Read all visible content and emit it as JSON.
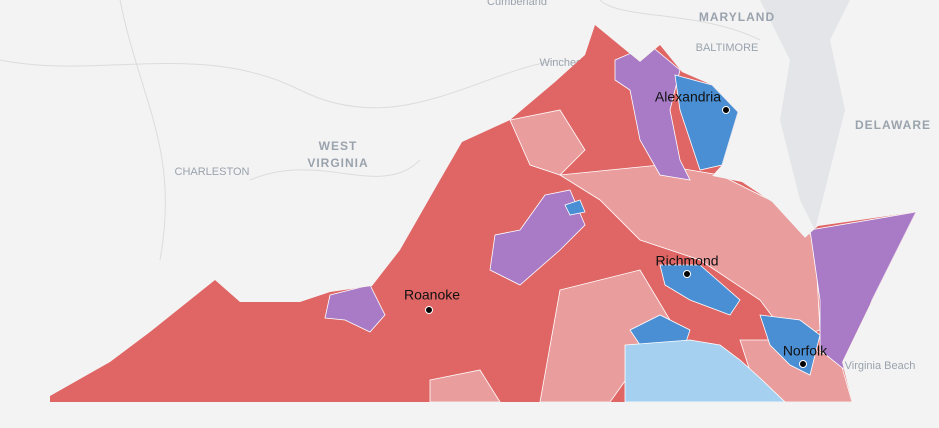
{
  "basemap_labels": [
    {
      "label": "Cumberland"
    },
    {
      "label": "MARYLAND"
    },
    {
      "label": "BALTIMORE"
    },
    {
      "label": "Winchester"
    },
    {
      "label": "DELAWARE"
    },
    {
      "label": "WEST"
    },
    {
      "label": "VIRGINIA"
    },
    {
      "label": "CHARLESTON"
    },
    {
      "label": "VIRGINIA"
    },
    {
      "label": "Virginia Beach"
    }
  ],
  "cities": [
    {
      "label": "Alexandria"
    },
    {
      "label": "Richmond"
    },
    {
      "label": "Roanoke"
    },
    {
      "label": "Norfolk"
    }
  ]
}
